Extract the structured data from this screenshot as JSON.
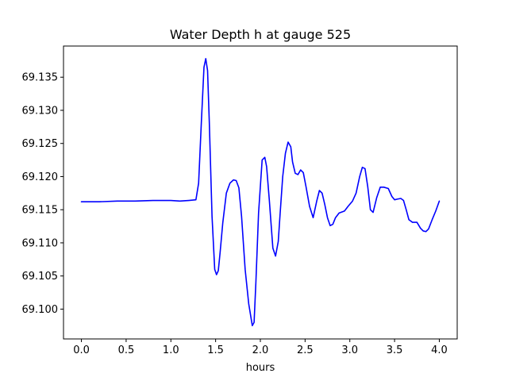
{
  "chart_data": {
    "type": "line",
    "title": "Water Depth h at gauge 525",
    "xlabel": "hours",
    "ylabel": "",
    "xlim": [
      -0.2,
      4.2
    ],
    "ylim": [
      69.0955,
      69.1397
    ],
    "xticks": [
      "0.0",
      "0.5",
      "1.0",
      "1.5",
      "2.0",
      "2.5",
      "3.0",
      "3.5",
      "4.0"
    ],
    "yticks": [
      "69.100",
      "69.105",
      "69.110",
      "69.115",
      "69.120",
      "69.125",
      "69.130",
      "69.135"
    ],
    "grid": false,
    "legend": "none",
    "series": [
      {
        "color": "#0000ff",
        "x": [
          0.0,
          0.2,
          0.4,
          0.6,
          0.8,
          1.0,
          1.1,
          1.2,
          1.28,
          1.31,
          1.34,
          1.37,
          1.39,
          1.41,
          1.43,
          1.46,
          1.49,
          1.51,
          1.53,
          1.55,
          1.58,
          1.62,
          1.66,
          1.7,
          1.73,
          1.76,
          1.79,
          1.83,
          1.87,
          1.91,
          1.93,
          1.95,
          1.98,
          2.02,
          2.05,
          2.07,
          2.1,
          2.14,
          2.17,
          2.2,
          2.22,
          2.25,
          2.28,
          2.31,
          2.34,
          2.36,
          2.39,
          2.42,
          2.45,
          2.48,
          2.51,
          2.55,
          2.59,
          2.63,
          2.66,
          2.69,
          2.72,
          2.75,
          2.78,
          2.81,
          2.84,
          2.88,
          2.94,
          2.98,
          3.03,
          3.07,
          3.11,
          3.14,
          3.17,
          3.2,
          3.23,
          3.26,
          3.3,
          3.34,
          3.38,
          3.43,
          3.47,
          3.5,
          3.53,
          3.57,
          3.6,
          3.63,
          3.66,
          3.7,
          3.75,
          3.79,
          3.82,
          3.85,
          3.88,
          3.92,
          3.96,
          4.0
        ],
        "y": [
          69.1162,
          69.1162,
          69.1163,
          69.1163,
          69.1164,
          69.1164,
          69.1163,
          69.1164,
          69.1165,
          69.119,
          69.128,
          69.1365,
          69.1378,
          69.136,
          69.128,
          69.114,
          69.106,
          69.1052,
          69.1058,
          69.1085,
          69.113,
          69.1175,
          69.119,
          69.1195,
          69.1194,
          69.1183,
          69.114,
          69.106,
          69.1008,
          69.0975,
          69.098,
          69.104,
          69.1145,
          69.1225,
          69.1229,
          69.1215,
          69.1165,
          69.1092,
          69.108,
          69.1102,
          69.1142,
          69.12,
          69.1235,
          69.1252,
          69.1245,
          69.1222,
          69.1205,
          69.1203,
          69.121,
          69.1206,
          69.1185,
          69.1155,
          69.1138,
          69.1163,
          69.1179,
          69.1175,
          69.1158,
          69.1138,
          69.1126,
          69.1128,
          69.1138,
          69.1145,
          69.1148,
          69.1155,
          69.1163,
          69.1175,
          69.12,
          69.1214,
          69.1212,
          69.1185,
          69.115,
          69.1146,
          69.1168,
          69.1184,
          69.1184,
          69.1182,
          69.117,
          69.1165,
          69.1166,
          69.1167,
          69.1164,
          69.115,
          69.1135,
          69.1131,
          69.1131,
          69.1122,
          69.1118,
          69.1117,
          69.1121,
          69.1135,
          69.1148,
          69.1163
        ]
      }
    ]
  }
}
